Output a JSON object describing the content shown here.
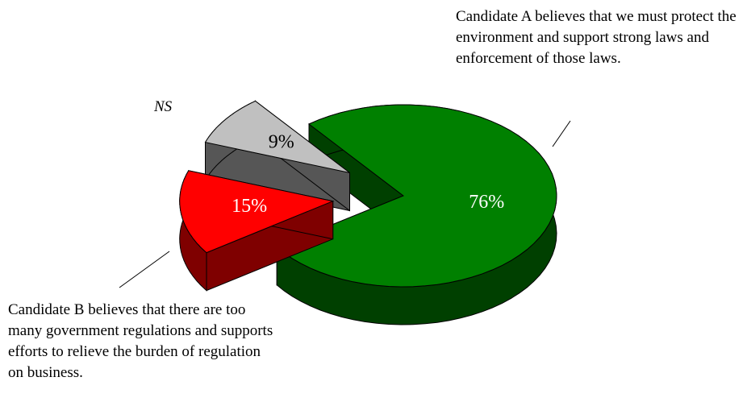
{
  "chart_data": {
    "type": "pie3d",
    "categories": [
      "Candidate A believes that we must protect the environment and support strong laws and enforcement of those laws.",
      "Candidate B believes that there are too many government regulations and supports efforts to relieve the burden of regulation on business.",
      "NS"
    ],
    "values": [
      76,
      15,
      9
    ],
    "value_labels": [
      "76%",
      "15%",
      "9%"
    ],
    "colors": [
      "#008000",
      "#ff0000",
      "#c0c0c0"
    ]
  }
}
